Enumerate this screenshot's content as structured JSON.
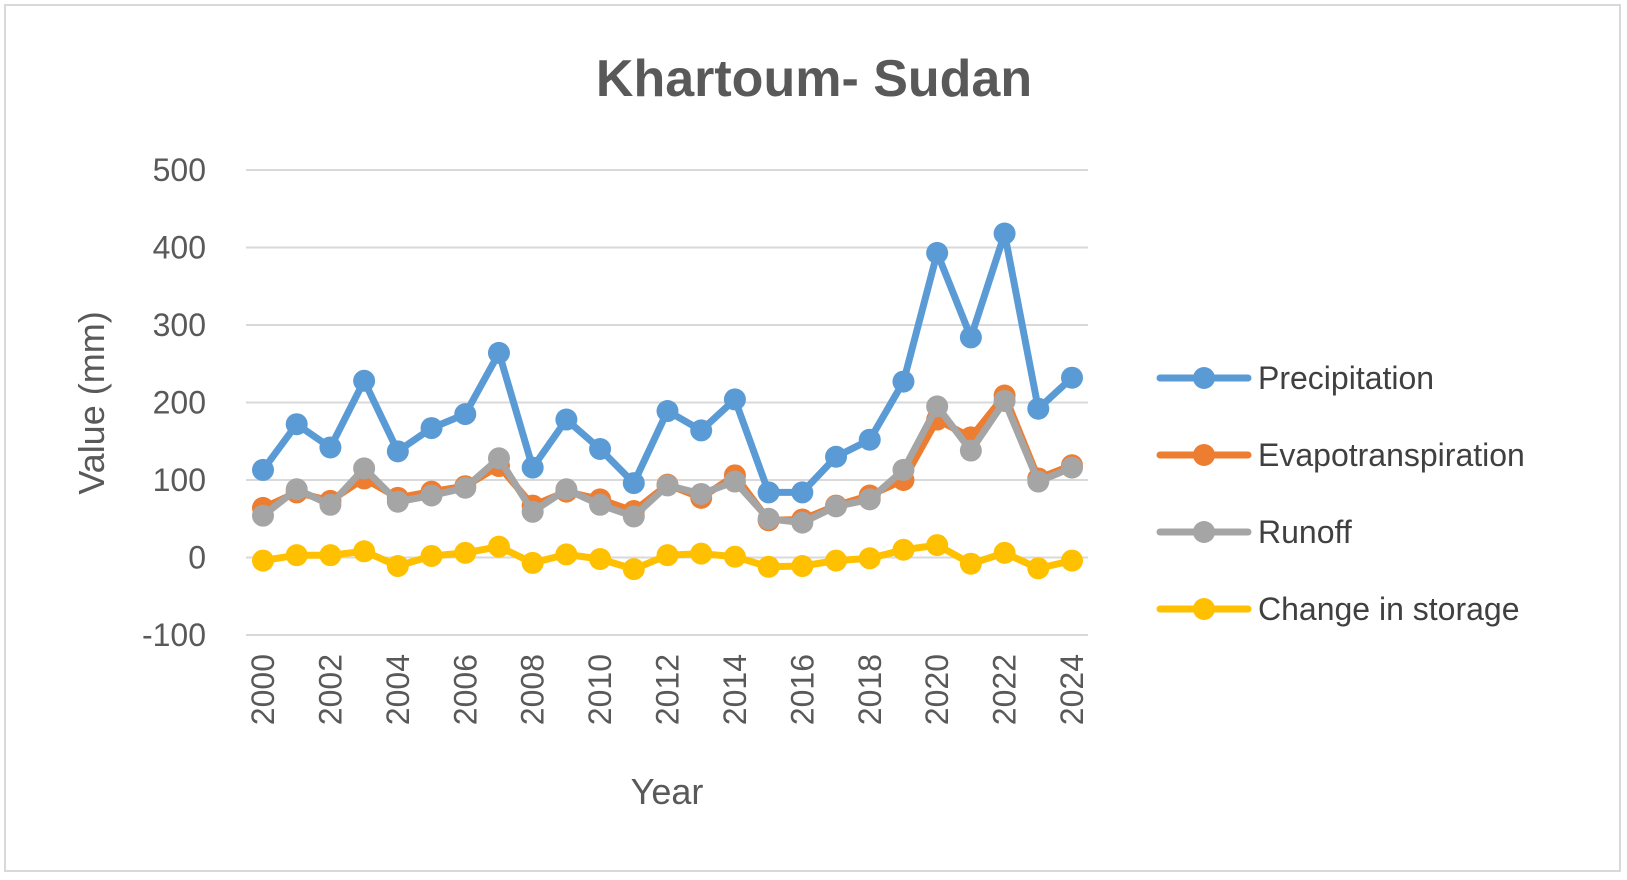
{
  "chart_data": {
    "type": "line",
    "title": "Khartoum- Sudan",
    "xlabel": "Year",
    "ylabel": "Value (mm)",
    "ylim": [
      -100,
      500
    ],
    "yticks": [
      -100,
      0,
      100,
      200,
      300,
      400,
      500
    ],
    "xtick_labels": [
      "2000",
      "2002",
      "2004",
      "2006",
      "2008",
      "2010",
      "2012",
      "2014",
      "2016",
      "2018",
      "2020",
      "2022",
      "2024"
    ],
    "x": [
      2000,
      2001,
      2002,
      2003,
      2004,
      2005,
      2006,
      2007,
      2008,
      2009,
      2010,
      2011,
      2012,
      2013,
      2014,
      2015,
      2016,
      2017,
      2018,
      2019,
      2020,
      2021,
      2022,
      2023,
      2024
    ],
    "grid": "horizontal",
    "legend_position": "right",
    "series": [
      {
        "name": "Precipitation",
        "color": "#5b9bd5",
        "values": [
          113,
          172,
          142,
          228,
          137,
          167,
          185,
          264,
          116,
          178,
          140,
          96,
          189,
          164,
          204,
          84,
          84,
          130,
          152,
          227,
          393,
          284,
          418,
          192,
          232
        ]
      },
      {
        "name": "Evapotranspiration",
        "color": "#ed7d31",
        "values": [
          64,
          84,
          73,
          102,
          77,
          85,
          92,
          118,
          67,
          85,
          75,
          60,
          94,
          77,
          106,
          48,
          49,
          67,
          80,
          100,
          178,
          155,
          209,
          102,
          119
        ]
      },
      {
        "name": "Runoff",
        "color": "#a5a5a5",
        "values": [
          54,
          88,
          68,
          115,
          72,
          80,
          90,
          128,
          59,
          88,
          68,
          53,
          93,
          82,
          98,
          50,
          45,
          66,
          75,
          113,
          195,
          138,
          202,
          98,
          116
        ]
      },
      {
        "name": "Change in storage",
        "color": "#ffc000",
        "values": [
          -4,
          3,
          3,
          8,
          -11,
          2,
          6,
          14,
          -7,
          4,
          -2,
          -15,
          3,
          5,
          1,
          -12,
          -11,
          -4,
          -1,
          10,
          16,
          -8,
          6,
          -14,
          -4
        ]
      }
    ]
  }
}
